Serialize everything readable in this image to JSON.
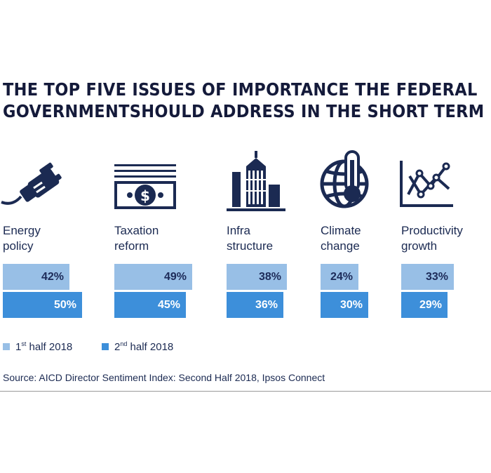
{
  "title": {
    "line1": "THE TOP FIVE ISSUES OF IMPORTANCE THE FEDERAL",
    "line2": "GOVERNMENTSHOULD ADDRESS IN THE SHORT TERM"
  },
  "chart_data": {
    "type": "bar",
    "title": "THE TOP FIVE ISSUES OF IMPORTANCE THE FEDERAL GOVERNMENTSHOULD ADDRESS IN THE SHORT TERM",
    "categories": [
      "Energy policy",
      "Taxation reform",
      "Infra structure",
      "Climate change",
      "Productivity growth"
    ],
    "series": [
      {
        "name": "1st half 2018",
        "values": [
          42,
          49,
          38,
          24,
          33
        ],
        "labels": [
          "42%",
          "49%",
          "38%",
          "24%",
          "33%"
        ]
      },
      {
        "name": "2nd half 2018",
        "values": [
          50,
          45,
          36,
          30,
          29
        ],
        "labels": [
          "50%",
          "45%",
          "36%",
          "30%",
          "29%"
        ]
      }
    ],
    "unit": "%",
    "xlabel": "",
    "ylabel": ""
  },
  "items": [
    {
      "label": "Energy\npolicy",
      "icon": "plug-icon"
    },
    {
      "label": "Taxation\nreform",
      "icon": "banknote-icon"
    },
    {
      "label": "Infra\nstructure",
      "icon": "buildings-icon"
    },
    {
      "label": "Climate\nchange",
      "icon": "globe-thermometer-icon"
    },
    {
      "label": "Productivity\ngrowth",
      "icon": "line-graph-icon"
    }
  ],
  "legend": {
    "first": {
      "prefix": "1",
      "sup": "st",
      "suffix": " half 2018"
    },
    "second": {
      "prefix": "2",
      "sup": "nd",
      "suffix": " half 2018"
    }
  },
  "source": "Source: AICD Director Sentiment Index: Second Half 2018, Ipsos Connect",
  "colors": {
    "first": "#98bfe6",
    "second": "#3d8fda",
    "navy": "#1b2a52"
  }
}
